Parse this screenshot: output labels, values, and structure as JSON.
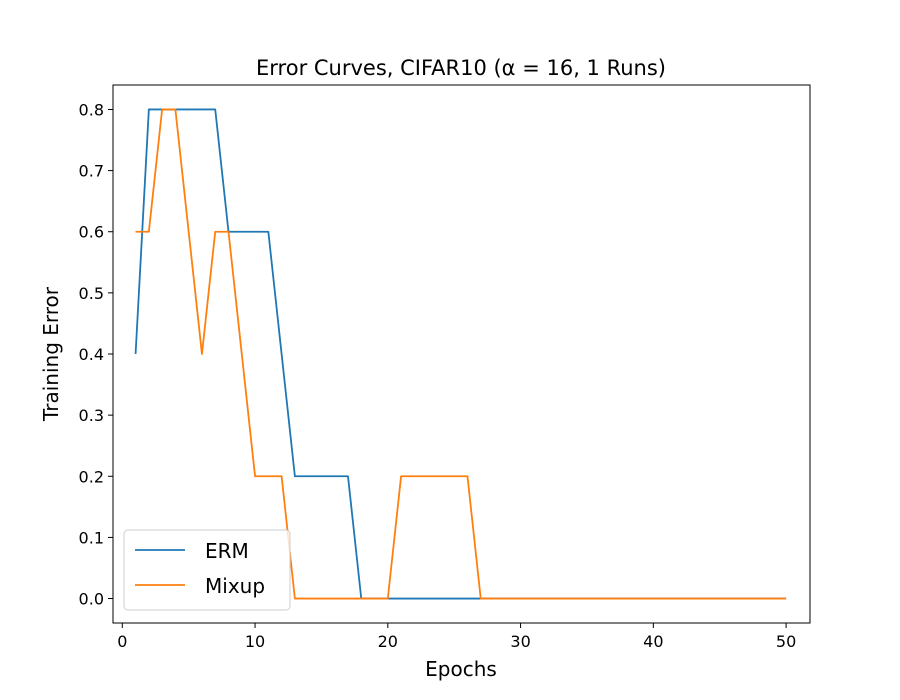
{
  "chart_data": {
    "type": "line",
    "title": "Error Curves, CIFAR10 (α = 16, 1 Runs)",
    "xlabel": "Epochs",
    "ylabel": "Training Error",
    "xlim": [
      -0.7,
      51.8
    ],
    "ylim": [
      -0.04,
      0.84
    ],
    "xticks": [
      0,
      10,
      20,
      30,
      40,
      50
    ],
    "yticks": [
      0.0,
      0.1,
      0.2,
      0.3,
      0.4,
      0.5,
      0.6,
      0.7,
      0.8
    ],
    "ytick_labels": [
      "0.0",
      "0.1",
      "0.2",
      "0.3",
      "0.4",
      "0.5",
      "0.6",
      "0.7",
      "0.8"
    ],
    "grid": false,
    "legend_position": "lower-left",
    "series": [
      {
        "name": "ERM",
        "color": "#1f77b4",
        "x": [
          1,
          2,
          3,
          4,
          5,
          6,
          7,
          8,
          9,
          10,
          11,
          12,
          13,
          14,
          15,
          16,
          17,
          18,
          19,
          20,
          21,
          22,
          23,
          24,
          25,
          26,
          27,
          28,
          29,
          30,
          31,
          32,
          33,
          34,
          35,
          36,
          37,
          38,
          39,
          40,
          41,
          42,
          43,
          44,
          45,
          46,
          47,
          48,
          49,
          50
        ],
        "y": [
          0.4,
          0.8,
          0.8,
          0.8,
          0.8,
          0.8,
          0.8,
          0.6,
          0.6,
          0.6,
          0.6,
          0.4,
          0.2,
          0.2,
          0.2,
          0.2,
          0.2,
          0.0,
          0.0,
          0.0,
          0.0,
          0.0,
          0.0,
          0.0,
          0.0,
          0.0,
          0.0,
          0.0,
          0.0,
          0.0,
          0.0,
          0.0,
          0.0,
          0.0,
          0.0,
          0.0,
          0.0,
          0.0,
          0.0,
          0.0,
          0.0,
          0.0,
          0.0,
          0.0,
          0.0,
          0.0,
          0.0,
          0.0,
          0.0,
          0.0
        ]
      },
      {
        "name": "Mixup",
        "color": "#ff7f0e",
        "x": [
          1,
          2,
          3,
          4,
          5,
          6,
          7,
          8,
          9,
          10,
          11,
          12,
          13,
          14,
          15,
          16,
          17,
          18,
          19,
          20,
          21,
          22,
          23,
          24,
          25,
          26,
          27,
          28,
          29,
          30,
          31,
          32,
          33,
          34,
          35,
          36,
          37,
          38,
          39,
          40,
          41,
          42,
          43,
          44,
          45,
          46,
          47,
          48,
          49,
          50
        ],
        "y": [
          0.6,
          0.6,
          0.8,
          0.8,
          0.6,
          0.4,
          0.6,
          0.6,
          0.4,
          0.2,
          0.2,
          0.2,
          0.0,
          0.0,
          0.0,
          0.0,
          0.0,
          0.0,
          0.0,
          0.0,
          0.2,
          0.2,
          0.2,
          0.2,
          0.2,
          0.2,
          0.0,
          0.0,
          0.0,
          0.0,
          0.0,
          0.0,
          0.0,
          0.0,
          0.0,
          0.0,
          0.0,
          0.0,
          0.0,
          0.0,
          0.0,
          0.0,
          0.0,
          0.0,
          0.0,
          0.0,
          0.0,
          0.0,
          0.0,
          0.0
        ]
      }
    ]
  }
}
